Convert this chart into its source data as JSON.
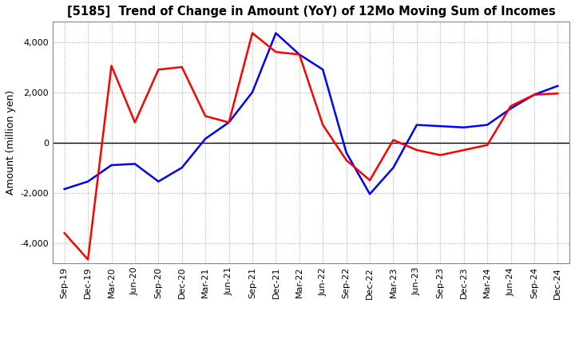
{
  "title": "[5185]  Trend of Change in Amount (YoY) of 12Mo Moving Sum of Incomes",
  "ylabel": "Amount (million yen)",
  "ylim": [
    -4800,
    4800
  ],
  "yticks": [
    -4000,
    -2000,
    0,
    2000,
    4000
  ],
  "background_color": "#ffffff",
  "grid_color": "#aaaaaa",
  "ordinary_income_color": "#0000ff",
  "net_income_color": "#ff0000",
  "x_labels": [
    "Sep-19",
    "Dec-19",
    "Mar-20",
    "Jun-20",
    "Sep-20",
    "Dec-20",
    "Mar-21",
    "Jun-21",
    "Sep-21",
    "Dec-21",
    "Mar-22",
    "Jun-22",
    "Sep-22",
    "Dec-22",
    "Mar-23",
    "Jun-23",
    "Sep-23",
    "Dec-23",
    "Mar-24",
    "Jun-24",
    "Sep-24",
    "Dec-24"
  ],
  "ordinary_income": [
    -1850,
    -1550,
    -900,
    -850,
    -1550,
    -1000,
    150,
    800,
    2000,
    4350,
    3500,
    2900,
    -400,
    -2050,
    -1000,
    700,
    650,
    600,
    700,
    1350,
    1900,
    2250
  ],
  "net_income": [
    -3600,
    -4650,
    3050,
    800,
    2900,
    3000,
    1050,
    800,
    4350,
    3600,
    3500,
    700,
    -700,
    -1500,
    100,
    -300,
    -500,
    -300,
    -100,
    1450,
    1900,
    1950
  ]
}
